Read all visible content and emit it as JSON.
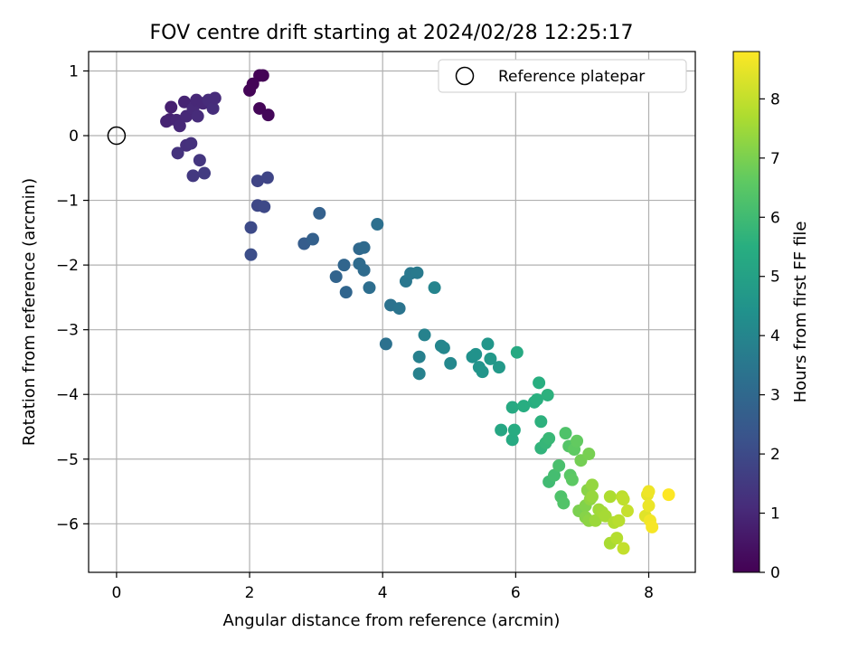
{
  "chart_data": {
    "type": "scatter",
    "title": "FOV centre drift starting at 2024/02/28 12:25:17",
    "xlabel": "Angular distance from reference (arcmin)",
    "ylabel": "Rotation from reference (arcmin)",
    "xlim": [
      -0.42,
      8.7
    ],
    "ylim": [
      -6.75,
      1.3
    ],
    "xticks": [
      0,
      2,
      4,
      6,
      8
    ],
    "yticks": [
      1,
      0,
      -1,
      -2,
      -3,
      -4,
      -5,
      -6
    ],
    "grid": true,
    "legend": {
      "position": "top-right",
      "entries": [
        "Reference platepar"
      ]
    },
    "reference_point": {
      "x": 0,
      "y": 0
    },
    "colorbar": {
      "label": "Hours from first FF file",
      "range": [
        0,
        8.8
      ],
      "ticks": [
        0,
        1,
        2,
        3,
        4,
        5,
        6,
        7,
        8
      ],
      "colormap": "viridis"
    },
    "points": [
      {
        "x": 2.15,
        "y": 0.93,
        "t": 0.05
      },
      {
        "x": 2.2,
        "y": 0.93,
        "t": 0.06
      },
      {
        "x": 2.05,
        "y": 0.8,
        "t": 0.08
      },
      {
        "x": 2.0,
        "y": 0.7,
        "t": 0.1
      },
      {
        "x": 2.15,
        "y": 0.42,
        "t": 0.12
      },
      {
        "x": 2.28,
        "y": 0.32,
        "t": 0.15
      },
      {
        "x": 0.82,
        "y": 0.44,
        "t": 0.8
      },
      {
        "x": 0.8,
        "y": 0.25,
        "t": 0.85
      },
      {
        "x": 0.75,
        "y": 0.22,
        "t": 0.9
      },
      {
        "x": 0.9,
        "y": 0.24,
        "t": 0.95
      },
      {
        "x": 0.95,
        "y": 0.15,
        "t": 1.0
      },
      {
        "x": 1.02,
        "y": 0.52,
        "t": 0.9
      },
      {
        "x": 1.05,
        "y": 0.3,
        "t": 1.0
      },
      {
        "x": 1.15,
        "y": 0.42,
        "t": 1.05
      },
      {
        "x": 1.2,
        "y": 0.55,
        "t": 1.0
      },
      {
        "x": 1.22,
        "y": 0.3,
        "t": 1.1
      },
      {
        "x": 1.3,
        "y": 0.5,
        "t": 1.0
      },
      {
        "x": 1.38,
        "y": 0.55,
        "t": 1.1
      },
      {
        "x": 1.45,
        "y": 0.42,
        "t": 1.15
      },
      {
        "x": 1.48,
        "y": 0.58,
        "t": 1.1
      },
      {
        "x": 1.05,
        "y": -0.15,
        "t": 1.2
      },
      {
        "x": 1.12,
        "y": -0.12,
        "t": 1.25
      },
      {
        "x": 0.92,
        "y": -0.27,
        "t": 1.3
      },
      {
        "x": 1.25,
        "y": -0.38,
        "t": 1.4
      },
      {
        "x": 1.15,
        "y": -0.62,
        "t": 1.5
      },
      {
        "x": 1.32,
        "y": -0.58,
        "t": 1.55
      },
      {
        "x": 2.12,
        "y": -0.7,
        "t": 1.8
      },
      {
        "x": 2.27,
        "y": -0.65,
        "t": 1.85
      },
      {
        "x": 2.12,
        "y": -1.08,
        "t": 1.9
      },
      {
        "x": 2.22,
        "y": -1.1,
        "t": 1.95
      },
      {
        "x": 2.02,
        "y": -1.42,
        "t": 2.0
      },
      {
        "x": 2.02,
        "y": -1.84,
        "t": 2.1
      },
      {
        "x": 2.82,
        "y": -1.67,
        "t": 2.6
      },
      {
        "x": 2.95,
        "y": -1.6,
        "t": 2.7
      },
      {
        "x": 3.05,
        "y": -1.2,
        "t": 2.75
      },
      {
        "x": 3.3,
        "y": -2.18,
        "t": 2.85
      },
      {
        "x": 3.42,
        "y": -2.0,
        "t": 2.9
      },
      {
        "x": 3.45,
        "y": -2.42,
        "t": 2.9
      },
      {
        "x": 3.65,
        "y": -1.75,
        "t": 3.0
      },
      {
        "x": 3.72,
        "y": -1.73,
        "t": 3.05
      },
      {
        "x": 3.65,
        "y": -1.98,
        "t": 3.1
      },
      {
        "x": 3.72,
        "y": -2.08,
        "t": 3.1
      },
      {
        "x": 3.8,
        "y": -2.35,
        "t": 3.2
      },
      {
        "x": 3.92,
        "y": -1.37,
        "t": 3.25
      },
      {
        "x": 4.05,
        "y": -3.22,
        "t": 3.3
      },
      {
        "x": 4.12,
        "y": -2.62,
        "t": 3.35
      },
      {
        "x": 4.25,
        "y": -2.67,
        "t": 3.4
      },
      {
        "x": 4.35,
        "y": -2.25,
        "t": 3.5
      },
      {
        "x": 4.42,
        "y": -2.13,
        "t": 3.55
      },
      {
        "x": 4.52,
        "y": -2.12,
        "t": 3.6
      },
      {
        "x": 4.55,
        "y": -3.42,
        "t": 3.8
      },
      {
        "x": 4.55,
        "y": -3.68,
        "t": 3.85
      },
      {
        "x": 4.63,
        "y": -3.08,
        "t": 3.9
      },
      {
        "x": 4.78,
        "y": -2.35,
        "t": 3.95
      },
      {
        "x": 4.88,
        "y": -3.25,
        "t": 4.0
      },
      {
        "x": 4.92,
        "y": -3.28,
        "t": 4.05
      },
      {
        "x": 5.02,
        "y": -3.52,
        "t": 4.1
      },
      {
        "x": 5.35,
        "y": -3.42,
        "t": 4.4
      },
      {
        "x": 5.4,
        "y": -3.38,
        "t": 4.45
      },
      {
        "x": 5.45,
        "y": -3.58,
        "t": 4.5
      },
      {
        "x": 5.5,
        "y": -3.65,
        "t": 4.55
      },
      {
        "x": 5.58,
        "y": -3.22,
        "t": 4.6
      },
      {
        "x": 5.62,
        "y": -3.45,
        "t": 4.65
      },
      {
        "x": 5.75,
        "y": -3.58,
        "t": 4.7
      },
      {
        "x": 5.78,
        "y": -4.55,
        "t": 5.2
      },
      {
        "x": 5.95,
        "y": -4.2,
        "t": 5.3
      },
      {
        "x": 5.95,
        "y": -4.7,
        "t": 5.35
      },
      {
        "x": 5.98,
        "y": -4.55,
        "t": 5.4
      },
      {
        "x": 6.02,
        "y": -3.35,
        "t": 5.3
      },
      {
        "x": 6.12,
        "y": -4.18,
        "t": 5.45
      },
      {
        "x": 6.28,
        "y": -4.12,
        "t": 5.5
      },
      {
        "x": 6.32,
        "y": -4.08,
        "t": 5.55
      },
      {
        "x": 6.35,
        "y": -3.82,
        "t": 5.5
      },
      {
        "x": 6.38,
        "y": -4.42,
        "t": 5.6
      },
      {
        "x": 6.38,
        "y": -4.83,
        "t": 5.7
      },
      {
        "x": 6.45,
        "y": -4.75,
        "t": 5.8
      },
      {
        "x": 6.5,
        "y": -4.68,
        "t": 5.85
      },
      {
        "x": 6.48,
        "y": -4.01,
        "t": 5.6
      },
      {
        "x": 6.5,
        "y": -5.35,
        "t": 6.0
      },
      {
        "x": 6.58,
        "y": -5.25,
        "t": 6.1
      },
      {
        "x": 6.65,
        "y": -5.1,
        "t": 6.2
      },
      {
        "x": 6.68,
        "y": -5.58,
        "t": 6.3
      },
      {
        "x": 6.72,
        "y": -5.68,
        "t": 6.35
      },
      {
        "x": 6.75,
        "y": -4.6,
        "t": 6.3
      },
      {
        "x": 6.8,
        "y": -4.8,
        "t": 6.4
      },
      {
        "x": 6.82,
        "y": -5.25,
        "t": 6.5
      },
      {
        "x": 6.85,
        "y": -5.32,
        "t": 6.55
      },
      {
        "x": 6.88,
        "y": -4.85,
        "t": 6.6
      },
      {
        "x": 6.92,
        "y": -4.72,
        "t": 6.65
      },
      {
        "x": 6.95,
        "y": -5.8,
        "t": 7.0
      },
      {
        "x": 6.98,
        "y": -5.02,
        "t": 6.9
      },
      {
        "x": 7.05,
        "y": -5.72,
        "t": 7.1
      },
      {
        "x": 7.05,
        "y": -5.9,
        "t": 7.15
      },
      {
        "x": 7.08,
        "y": -5.48,
        "t": 7.2
      },
      {
        "x": 7.1,
        "y": -4.92,
        "t": 6.95
      },
      {
        "x": 7.1,
        "y": -5.95,
        "t": 7.25
      },
      {
        "x": 7.12,
        "y": -5.62,
        "t": 7.3
      },
      {
        "x": 7.15,
        "y": -5.4,
        "t": 7.35
      },
      {
        "x": 7.15,
        "y": -5.58,
        "t": 7.4
      },
      {
        "x": 7.2,
        "y": -5.95,
        "t": 7.45
      },
      {
        "x": 7.25,
        "y": -5.78,
        "t": 7.5
      },
      {
        "x": 7.3,
        "y": -5.82,
        "t": 7.55
      },
      {
        "x": 7.35,
        "y": -5.88,
        "t": 7.6
      },
      {
        "x": 7.42,
        "y": -6.3,
        "t": 7.65
      },
      {
        "x": 7.42,
        "y": -5.58,
        "t": 7.7
      },
      {
        "x": 7.48,
        "y": -5.98,
        "t": 7.75
      },
      {
        "x": 7.52,
        "y": -6.22,
        "t": 7.8
      },
      {
        "x": 7.55,
        "y": -5.95,
        "t": 7.85
      },
      {
        "x": 7.6,
        "y": -5.58,
        "t": 7.9
      },
      {
        "x": 7.62,
        "y": -5.62,
        "t": 7.95
      },
      {
        "x": 7.62,
        "y": -6.38,
        "t": 8.0
      },
      {
        "x": 7.68,
        "y": -5.8,
        "t": 8.05
      },
      {
        "x": 7.95,
        "y": -5.88,
        "t": 8.4
      },
      {
        "x": 7.98,
        "y": -5.55,
        "t": 8.5
      },
      {
        "x": 8.0,
        "y": -5.72,
        "t": 8.55
      },
      {
        "x": 8.0,
        "y": -5.5,
        "t": 8.6
      },
      {
        "x": 8.02,
        "y": -5.95,
        "t": 8.65
      },
      {
        "x": 8.05,
        "y": -6.05,
        "t": 8.7
      },
      {
        "x": 8.3,
        "y": -5.55,
        "t": 8.8
      }
    ]
  }
}
